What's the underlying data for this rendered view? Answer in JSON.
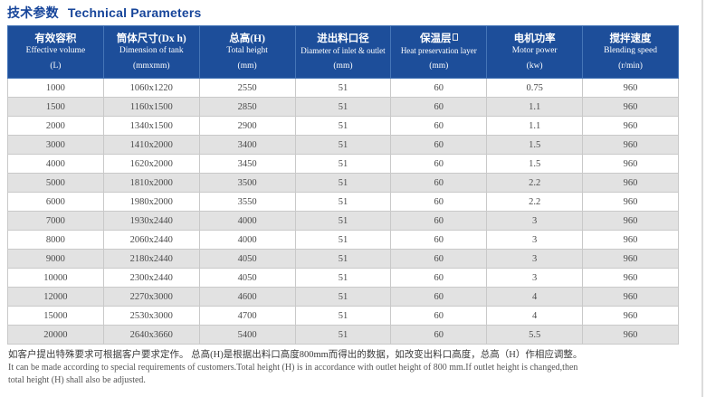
{
  "header": {
    "title_cn": "技术参数",
    "title_en": "Technical Parameters"
  },
  "table": {
    "columns": [
      {
        "cn": "有效容积",
        "en": "Effective volume",
        "unit": "(L)"
      },
      {
        "cn": "筒体尺寸(Dx h)",
        "en": "Dimension of tank",
        "unit": "(mmxmm)"
      },
      {
        "cn": "总高(H)",
        "en": "Total height",
        "unit": "(mm)"
      },
      {
        "cn": "进出料口径",
        "en": "Diameter of inlet & outlet",
        "unit": "(mm)"
      },
      {
        "cn": "保温层",
        "en": "Heat preservation layer",
        "unit": "(mm)"
      },
      {
        "cn": "电机功率",
        "en": "Motor power",
        "unit": "(kw)"
      },
      {
        "cn": "搅拌速度",
        "en": "Blending speed",
        "unit": "(r/min)"
      }
    ],
    "rows": [
      [
        "1000",
        "1060x1220",
        "2550",
        "51",
        "60",
        "0.75",
        "960"
      ],
      [
        "1500",
        "1160x1500",
        "2850",
        "51",
        "60",
        "1.1",
        "960"
      ],
      [
        "2000",
        "1340x1500",
        "2900",
        "51",
        "60",
        "1.1",
        "960"
      ],
      [
        "3000",
        "1410x2000",
        "3400",
        "51",
        "60",
        "1.5",
        "960"
      ],
      [
        "4000",
        "1620x2000",
        "3450",
        "51",
        "60",
        "1.5",
        "960"
      ],
      [
        "5000",
        "1810x2000",
        "3500",
        "51",
        "60",
        "2.2",
        "960"
      ],
      [
        "6000",
        "1980x2000",
        "3550",
        "51",
        "60",
        "2.2",
        "960"
      ],
      [
        "7000",
        "1930x2440",
        "4000",
        "51",
        "60",
        "3",
        "960"
      ],
      [
        "8000",
        "2060x2440",
        "4000",
        "51",
        "60",
        "3",
        "960"
      ],
      [
        "9000",
        "2180x2440",
        "4050",
        "51",
        "60",
        "3",
        "960"
      ],
      [
        "10000",
        "2300x2440",
        "4050",
        "51",
        "60",
        "3",
        "960"
      ],
      [
        "12000",
        "2270x3000",
        "4600",
        "51",
        "60",
        "4",
        "960"
      ],
      [
        "15000",
        "2530x3000",
        "4700",
        "51",
        "60",
        "4",
        "960"
      ],
      [
        "20000",
        "2640x3660",
        "5400",
        "51",
        "60",
        "5.5",
        "960"
      ]
    ]
  },
  "notes": {
    "line_cn": "如客户提出特殊要求可根据客户要求定作。 总高(H)是根据出料口高度800mm而得出的数据，如改变出料口高度，总高（H）作相应调整。",
    "line_en1": "It can be made according to special requirements of customers.Total height (H) is in accordance with outlet height of 800 mm.If outlet height is changed,then",
    "line_en2": "total height (H) shall also be adjusted."
  },
  "colors": {
    "header_bg": "#1d4e9a",
    "header_cell_border": "#4575b7",
    "title_text": "#17459a",
    "row_alt_bg": "#e2e2e2",
    "grid_line": "#c9c9c9",
    "body_text": "#4a4a4a"
  }
}
